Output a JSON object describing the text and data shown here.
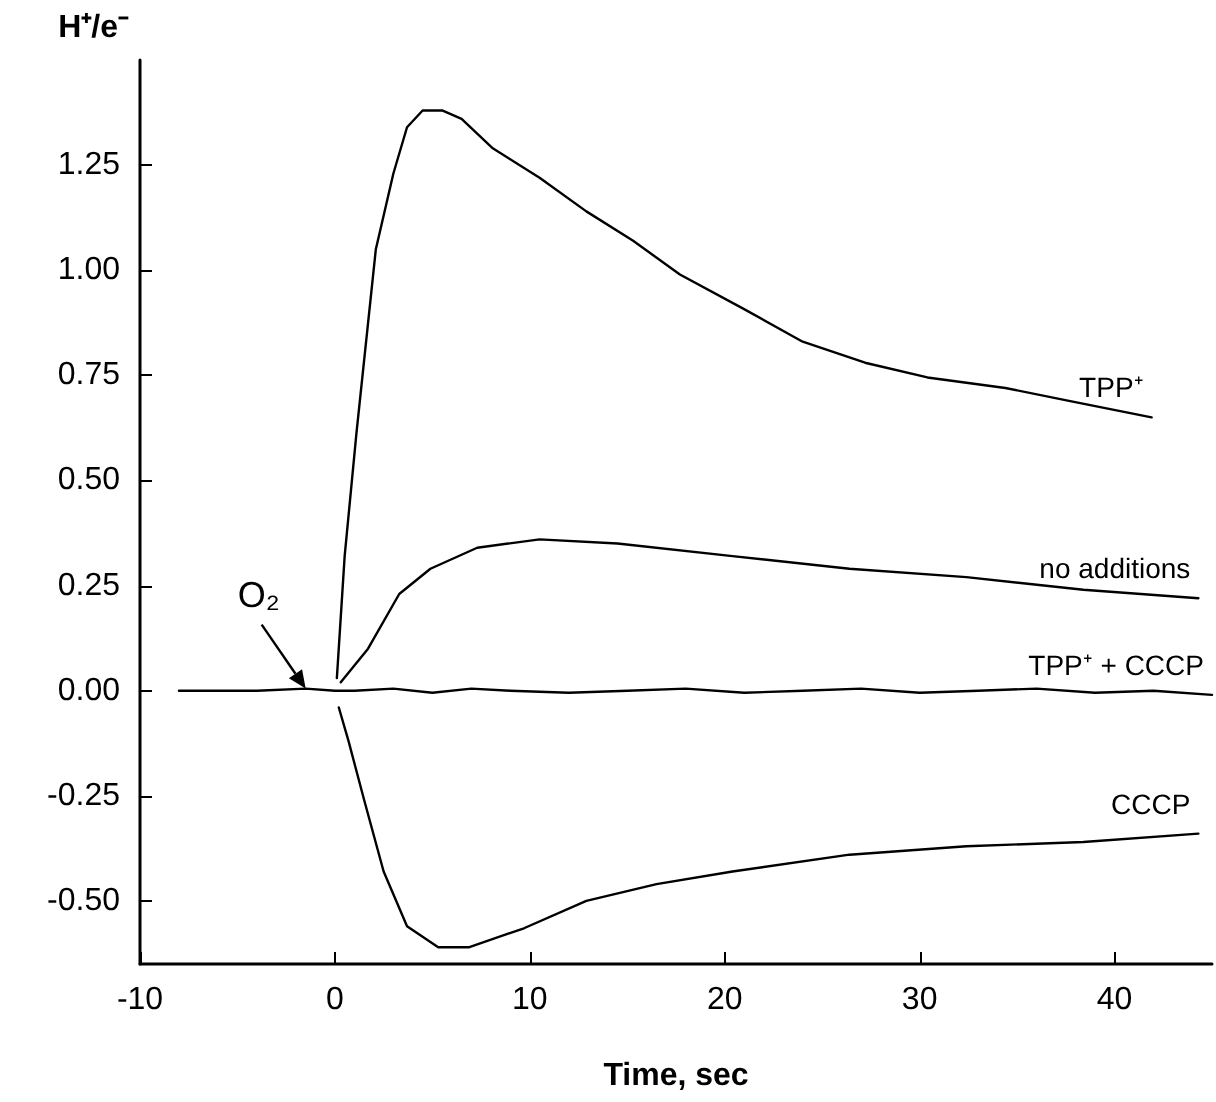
{
  "chart_data": {
    "type": "line",
    "xlabel": "Time, sec",
    "ylabel": "H⁺/e⁻",
    "xlim": [
      -10,
      45
    ],
    "ylim": [
      -0.65,
      1.5
    ],
    "xticks": [
      -10,
      0,
      10,
      20,
      30,
      40
    ],
    "yticks": [
      {
        "value": -0.5,
        "label": "-0.50"
      },
      {
        "value": -0.25,
        "label": "-0.25"
      },
      {
        "value": 0,
        "label": "0.00"
      },
      {
        "value": 0.25,
        "label": "0.25"
      },
      {
        "value": 0.5,
        "label": "0.50"
      },
      {
        "value": 0.75,
        "label": "0.75"
      },
      {
        "value": 1,
        "label": "1.00"
      },
      {
        "value": 1.25,
        "label": "1.25"
      }
    ],
    "grid": false,
    "marker": "none",
    "line_style": "solid",
    "annotations": [
      {
        "text": "O₂",
        "x": -1.5,
        "y": 0.005
      }
    ],
    "series": [
      {
        "name": "TPP⁺",
        "color": "#000000",
        "x": [
          0.1,
          0.5,
          1.1,
          2.1,
          3,
          3.7,
          4.5,
          5.5,
          6.5,
          8.1,
          10.5,
          12.9,
          15.3,
          17.7,
          20.9,
          24,
          27.2,
          30.4,
          34.4,
          37.6,
          41.9
        ],
        "values": [
          0.03,
          0.32,
          0.61,
          1.05,
          1.23,
          1.34,
          1.38,
          1.38,
          1.36,
          1.29,
          1.22,
          1.14,
          1.07,
          0.99,
          0.91,
          0.83,
          0.78,
          0.745,
          0.72,
          0.69,
          0.65
        ]
      },
      {
        "name": "no additions",
        "color": "#000000",
        "x": [
          0.3,
          1.7,
          3.3,
          4.9,
          7.3,
          10.5,
          14.5,
          20.4,
          26.4,
          32.4,
          38.4,
          44.3
        ],
        "values": [
          0.02,
          0.1,
          0.23,
          0.29,
          0.34,
          0.36,
          0.35,
          0.32,
          0.29,
          0.27,
          0.24,
          0.22
        ]
      },
      {
        "name": "TPP⁺ + CCCP",
        "color": "#000000",
        "x": [
          -8,
          -4,
          -1.5,
          0,
          1,
          3,
          5,
          7,
          9,
          12,
          15,
          18,
          21,
          24,
          27,
          30,
          33,
          36,
          39,
          42,
          45
        ],
        "values": [
          0,
          0,
          0.005,
          0,
          0,
          0.005,
          -0.005,
          0.005,
          0,
          -0.005,
          0,
          0.005,
          -0.005,
          0,
          0.005,
          -0.005,
          0,
          0.005,
          -0.005,
          0,
          -0.01
        ]
      },
      {
        "name": "CCCP",
        "color": "#000000",
        "x": [
          0.2,
          0.7,
          1.5,
          2.5,
          3.7,
          5.3,
          6.9,
          9.7,
          12.9,
          16.5,
          20.4,
          26.4,
          32.4,
          38.4,
          44.3
        ],
        "values": [
          -0.04,
          -0.12,
          -0.26,
          -0.43,
          -0.56,
          -0.61,
          -0.61,
          -0.565,
          -0.5,
          -0.46,
          -0.43,
          -0.39,
          -0.37,
          -0.36,
          -0.34
        ]
      }
    ]
  }
}
